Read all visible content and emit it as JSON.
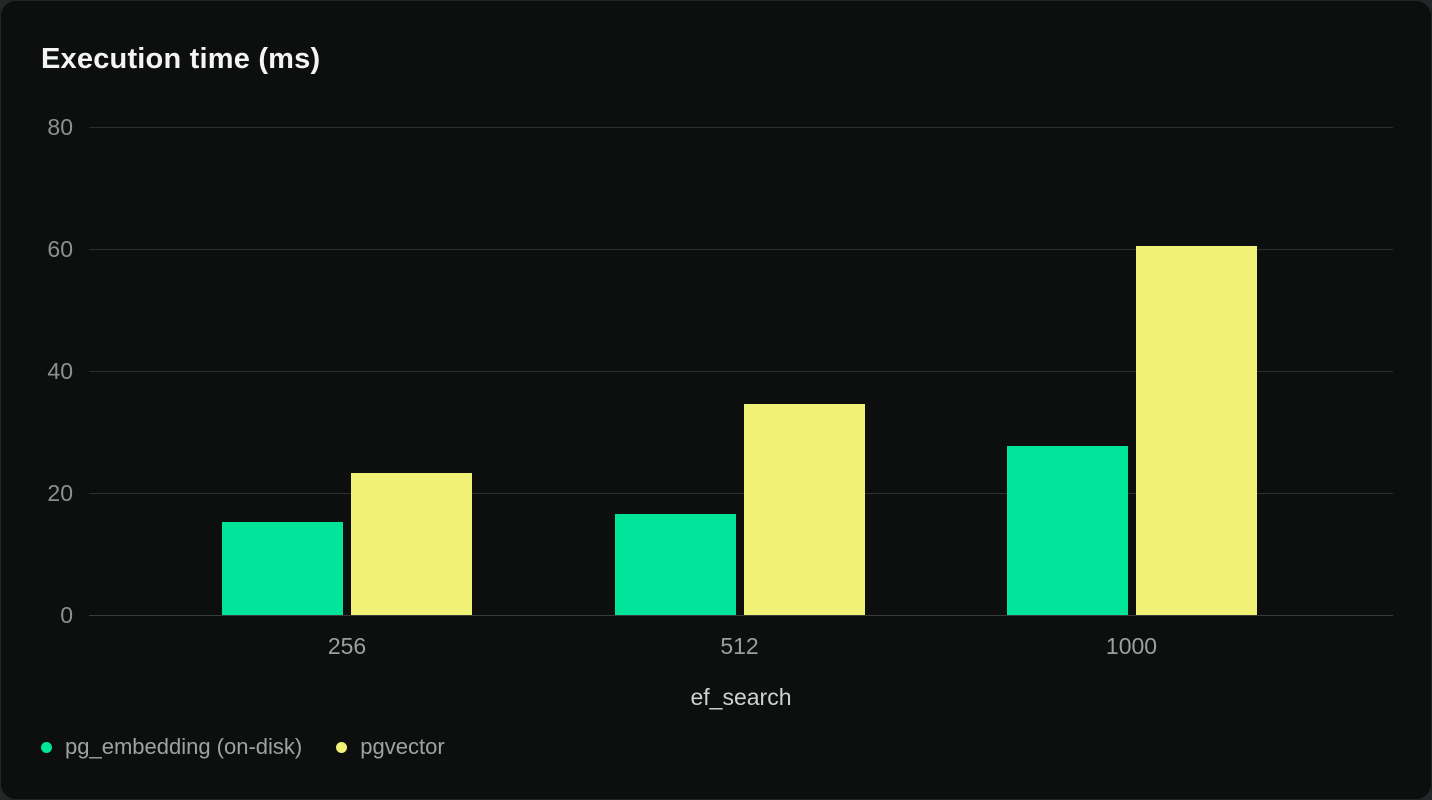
{
  "card": {
    "title": "Execution time (ms)"
  },
  "colors": {
    "card_background": "#0d0f0f",
    "page_background": "#242627",
    "gridline": "#2e3030",
    "title_text": "#f4f4f4",
    "axis_tick_text": "#8d8f91",
    "x_axis_label_text": "#ced0d2",
    "legend_text": "#9fa1a3",
    "series_green": "#00e599",
    "series_yellow": "#f0f175"
  },
  "chart_data": {
    "type": "bar",
    "title": "Execution time (ms)",
    "categories": [
      "256",
      "512",
      "1000"
    ],
    "series": [
      {
        "name": "pg_embedding (on-disk)",
        "color": "#00e599",
        "values": [
          15.2,
          16.5,
          27.7
        ]
      },
      {
        "name": "pgvector",
        "color": "#f0f175",
        "values": [
          23.2,
          34.6,
          60.5
        ]
      }
    ],
    "xlabel": "ef_search",
    "ylabel": "",
    "ylim": [
      0,
      80
    ],
    "yticks": [
      0,
      20,
      40,
      60,
      80
    ],
    "grid": true,
    "legend_position": "bottom-left"
  }
}
